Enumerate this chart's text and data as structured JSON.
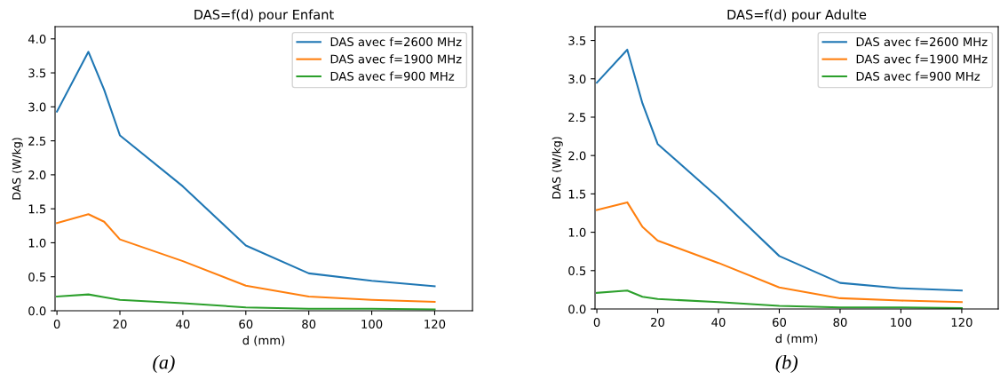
{
  "chart_data": [
    {
      "type": "line",
      "title": "DAS=f(d) pour Enfant",
      "xlabel": "d (mm)",
      "ylabel": "DAS (W/kg)",
      "x": [
        0,
        10,
        15,
        20,
        40,
        60,
        80,
        100,
        120
      ],
      "xlim": [
        -0.6,
        132
      ],
      "ylim": [
        0,
        4.18
      ],
      "xticks": [
        0,
        20,
        40,
        60,
        80,
        100,
        120
      ],
      "yticks": [
        {
          "value": 0,
          "label": "0.0"
        },
        0.5,
        {
          "value": 1,
          "label": "1.0"
        },
        1.5,
        {
          "value": 2,
          "label": "2.0"
        },
        2.5,
        {
          "value": 3,
          "label": "3.0"
        },
        3.5,
        {
          "value": 4,
          "label": "4.0"
        }
      ],
      "legend": "top right",
      "grid": false,
      "annotations": [
        "(a)"
      ],
      "series": [
        {
          "name": "DAS avec f=2600 MHz",
          "color": "#1f77b4",
          "values": [
            2.93,
            3.81,
            3.25,
            2.58,
            1.83,
            0.96,
            0.55,
            0.44,
            0.36
          ]
        },
        {
          "name": "DAS avec f=1900 MHz",
          "color": "#ff7f0e",
          "values": [
            1.29,
            1.42,
            1.31,
            1.05,
            0.73,
            0.37,
            0.21,
            0.16,
            0.13
          ]
        },
        {
          "name": "DAS avec f=900 MHz",
          "color": "#2ca02c",
          "values": [
            0.21,
            0.24,
            0.2,
            0.16,
            0.11,
            0.05,
            0.03,
            0.03,
            0.02
          ]
        }
      ]
    },
    {
      "type": "line",
      "title": "DAS=f(d) pour Adulte",
      "xlabel": "d (mm)",
      "ylabel": "DAS (W/kg)",
      "x": [
        0,
        10,
        15,
        20,
        40,
        60,
        80,
        100,
        120
      ],
      "xlim": [
        -0.6,
        132
      ],
      "ylim": [
        0,
        3.68
      ],
      "xticks": [
        0,
        20,
        40,
        60,
        80,
        100,
        120
      ],
      "yticks": [
        {
          "value": 0,
          "label": "0.0"
        },
        0.5,
        {
          "value": 1,
          "label": "1.0"
        },
        1.5,
        {
          "value": 2,
          "label": "2.0"
        },
        2.5,
        {
          "value": 3,
          "label": "3.0"
        },
        3.5
      ],
      "legend": "top right",
      "grid": false,
      "annotations": [
        "(b)"
      ],
      "series": [
        {
          "name": "DAS avec f=2600 MHz",
          "color": "#1f77b4",
          "values": [
            2.95,
            3.38,
            2.68,
            2.15,
            1.45,
            0.69,
            0.34,
            0.27,
            0.24
          ]
        },
        {
          "name": "DAS avec f=1900 MHz",
          "color": "#ff7f0e",
          "values": [
            1.29,
            1.39,
            1.07,
            0.89,
            0.6,
            0.28,
            0.14,
            0.11,
            0.09
          ]
        },
        {
          "name": "DAS avec f=900 MHz",
          "color": "#2ca02c",
          "values": [
            0.21,
            0.24,
            0.16,
            0.13,
            0.09,
            0.04,
            0.02,
            0.02,
            0.01
          ]
        }
      ]
    }
  ]
}
